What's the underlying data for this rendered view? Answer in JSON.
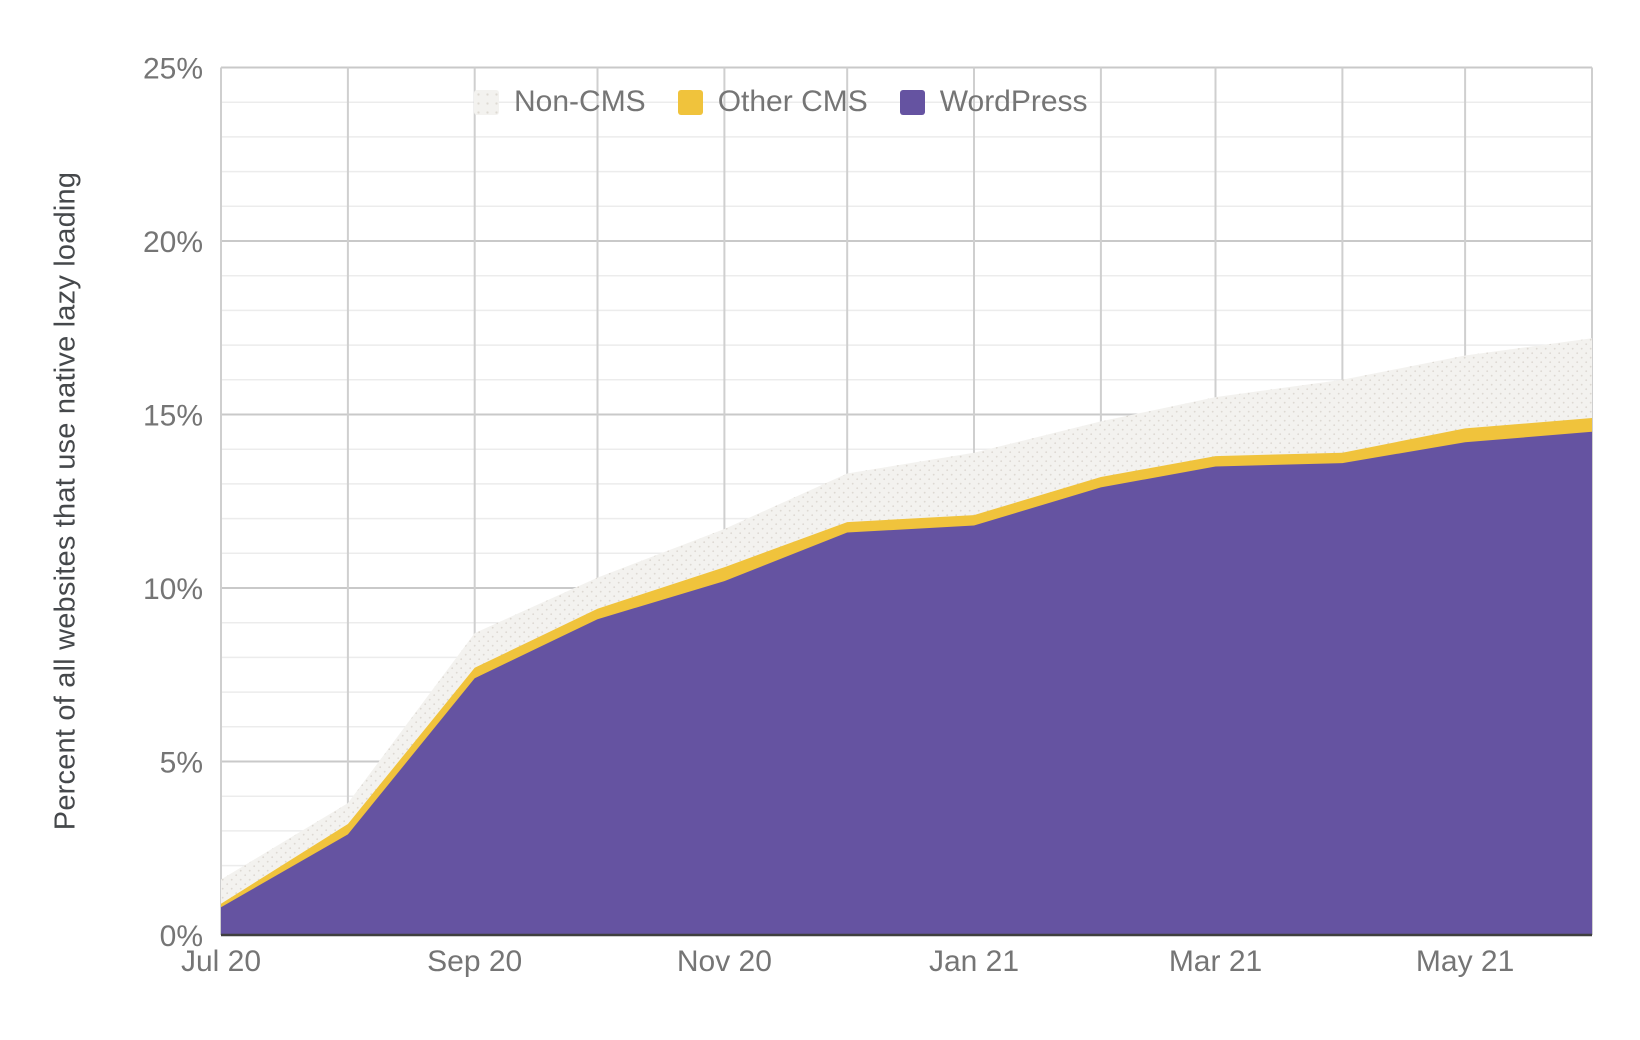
{
  "chart_data": {
    "type": "area",
    "stacked": true,
    "title": "",
    "ylabel": "Percent of all websites that use native lazy loading",
    "xlabel": "",
    "ylim": [
      0,
      25
    ],
    "grid": "on",
    "legend_position": "top-center-inside",
    "x": [
      "Jul 20",
      "Aug 20",
      "Sep 20",
      "Oct 20",
      "Nov 20",
      "Dec 20",
      "Jan 21",
      "Feb 21",
      "Mar 21",
      "Apr 21",
      "May 21",
      "Jun 21"
    ],
    "x_day_offsets": [
      0,
      31,
      62,
      92,
      123,
      153,
      184,
      215,
      243,
      274,
      304,
      335
    ],
    "x_axis_tick_labels": [
      "Jul 20",
      "Sep 20",
      "Nov 20",
      "Jan 21",
      "Mar 21",
      "May 21"
    ],
    "x_axis_tick_indices": [
      0,
      2,
      4,
      6,
      8,
      10
    ],
    "y_axis_tick_labels": [
      "0%",
      "5%",
      "10%",
      "15%",
      "20%",
      "25%"
    ],
    "y_minor_step": 1,
    "y_major_step": 5,
    "series": [
      {
        "name": "WordPress",
        "color": "#6553A1",
        "values": [
          0.8,
          2.9,
          7.4,
          9.1,
          10.2,
          11.6,
          11.8,
          12.9,
          13.5,
          13.6,
          14.2,
          14.5
        ]
      },
      {
        "name": "Other CMS",
        "color": "#F0C33C",
        "values": [
          0.1,
          0.3,
          0.3,
          0.3,
          0.4,
          0.3,
          0.3,
          0.3,
          0.3,
          0.3,
          0.4,
          0.4
        ]
      },
      {
        "name": "Non-CMS",
        "color": "#F3F2EF",
        "pattern": "dots",
        "dot_color": "#DDD9D2",
        "values": [
          0.7,
          0.6,
          1.0,
          0.9,
          1.1,
          1.4,
          1.8,
          1.6,
          1.7,
          2.1,
          2.1,
          2.3
        ]
      }
    ],
    "stack_totals": [
      1.6,
      3.8,
      8.7,
      10.3,
      11.7,
      13.3,
      13.9,
      14.8,
      15.5,
      16.0,
      16.7,
      17.2
    ],
    "colors": {
      "minor_gridline": "#ECECEC",
      "major_gridline": "#C9C9C9",
      "vertical_gridline": "#CFCFCF",
      "axis_line": "#3F3F3F",
      "tick_label": "#757575",
      "axis_title": "#45484B"
    }
  },
  "legend": {
    "noncms_label": "Non-CMS",
    "othercms_label": "Other CMS",
    "wordpress_label": "WordPress"
  }
}
